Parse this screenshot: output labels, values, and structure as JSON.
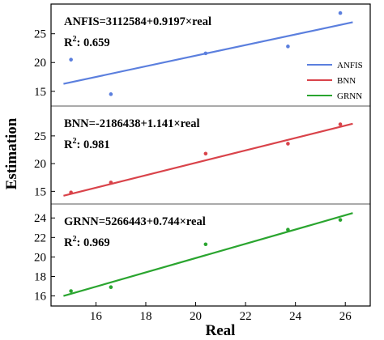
{
  "chart_data": [
    {
      "type": "scatter",
      "xlabel": "Real",
      "ylabel": "Estimation",
      "xlim": [
        14.2,
        27.0
      ],
      "xticks": [
        16,
        18,
        20,
        22,
        24,
        26
      ],
      "panels": [
        {
          "id": "anfis",
          "equation": "ANFIS=3112584+0.9197×real",
          "r2_prefix": "R",
          "r2_sup": "2",
          "r2_text": ": 0.659",
          "color": "#5b7fde",
          "ylim": [
            13.0,
            29.6
          ],
          "yticks": [
            15,
            20,
            25
          ],
          "points": [
            {
              "x": 15.0,
              "y": 20.5
            },
            {
              "x": 16.6,
              "y": 14.5
            },
            {
              "x": 20.4,
              "y": 21.6
            },
            {
              "x": 23.7,
              "y": 22.8
            },
            {
              "x": 25.8,
              "y": 28.6
            }
          ],
          "fit": {
            "x": [
              14.7,
              26.3
            ],
            "y": [
              16.3,
              27.0
            ]
          }
        },
        {
          "id": "bnn",
          "equation": "BNN=-2186438+1.141×real",
          "r2_prefix": "R",
          "r2_sup": "2",
          "r2_text": ": 0.981",
          "color": "#d9434a",
          "ylim": [
            13.3,
            29.8
          ],
          "yticks": [
            15,
            20,
            25
          ],
          "points": [
            {
              "x": 15.0,
              "y": 14.8
            },
            {
              "x": 16.6,
              "y": 16.6
            },
            {
              "x": 20.4,
              "y": 21.8
            },
            {
              "x": 23.7,
              "y": 23.6
            },
            {
              "x": 25.8,
              "y": 27.1
            }
          ],
          "fit": {
            "x": [
              14.7,
              26.3
            ],
            "y": [
              14.2,
              27.2
            ]
          }
        },
        {
          "id": "grnn",
          "equation": "GRNN=5266443+0.744×real",
          "r2_prefix": "R",
          "r2_sup": "2",
          "r2_text": ": 0.969",
          "color": "#2aa52f",
          "ylim": [
            15.3,
            25.1
          ],
          "yticks": [
            16,
            18,
            20,
            22,
            24
          ],
          "points": [
            {
              "x": 15.0,
              "y": 16.5
            },
            {
              "x": 16.6,
              "y": 16.9
            },
            {
              "x": 20.4,
              "y": 21.3
            },
            {
              "x": 23.7,
              "y": 22.8
            },
            {
              "x": 25.8,
              "y": 23.8
            }
          ],
          "fit": {
            "x": [
              14.7,
              26.3
            ],
            "y": [
              16.0,
              24.5
            ]
          }
        }
      ],
      "legend": {
        "placement": "right",
        "entries": [
          {
            "label": "ANFIS",
            "color": "#5b7fde"
          },
          {
            "label": "BNN",
            "color": "#d9434a"
          },
          {
            "label": "GRNN",
            "color": "#2aa52f"
          }
        ]
      }
    }
  ]
}
